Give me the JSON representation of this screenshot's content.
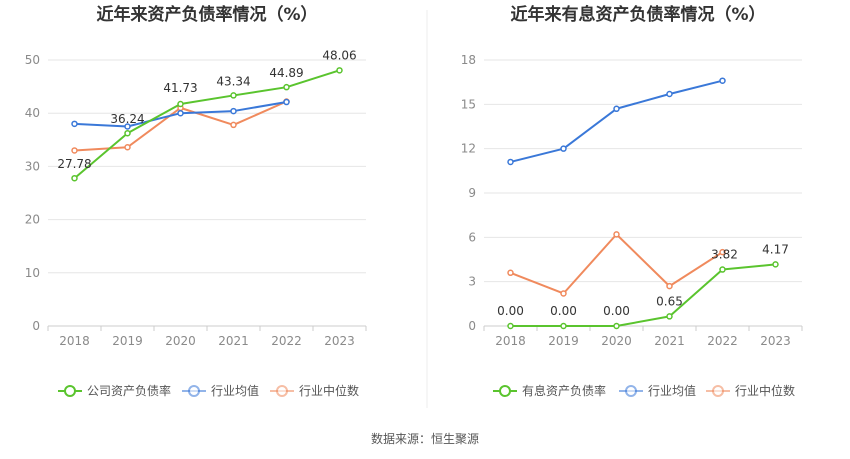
{
  "source": "数据来源：恒生聚源",
  "colors": {
    "company": "#5ac42e",
    "industry_avg": "#3a78d8",
    "industry_median": "#f08a5d",
    "grid": "#e6e6e6",
    "axis": "#cccccc"
  },
  "chart_data": [
    {
      "type": "line",
      "title": "近年来资产负债率情况（%）",
      "categories": [
        "2018",
        "2019",
        "2020",
        "2021",
        "2022",
        "2023"
      ],
      "ylim": [
        0,
        50
      ],
      "yticks": [
        0,
        10,
        20,
        30,
        40,
        50
      ],
      "series": [
        {
          "key": "company",
          "name": "公司资产负债率",
          "values": [
            27.78,
            36.24,
            41.73,
            43.34,
            44.89,
            48.06
          ],
          "labels": [
            "27.78",
            "36.24",
            "41.73",
            "43.34",
            "44.89",
            "48.06"
          ]
        },
        {
          "key": "industry_avg",
          "name": "行业均值",
          "values": [
            38.0,
            37.5,
            40.0,
            40.4,
            42.1,
            null
          ]
        },
        {
          "key": "industry_median",
          "name": "行业中位数",
          "values": [
            33.0,
            33.6,
            41.0,
            37.8,
            42.2,
            null
          ]
        }
      ]
    },
    {
      "type": "line",
      "title": "近年来有息资产负债率情况（%）",
      "categories": [
        "2018",
        "2019",
        "2020",
        "2021",
        "2022",
        "2023"
      ],
      "ylim": [
        0,
        18
      ],
      "yticks": [
        0,
        3,
        6,
        9,
        12,
        15,
        18
      ],
      "series": [
        {
          "key": "company",
          "name": "有息资产负债率",
          "values": [
            0.0,
            0.0,
            0.0,
            0.65,
            3.82,
            4.17
          ],
          "labels": [
            "0.00",
            "0.00",
            "0.00",
            "0.65",
            "3.82",
            "4.17"
          ]
        },
        {
          "key": "industry_avg",
          "name": "行业均值",
          "values": [
            11.1,
            12.0,
            14.7,
            15.7,
            16.6,
            null
          ]
        },
        {
          "key": "industry_median",
          "name": "行业中位数",
          "values": [
            3.6,
            2.2,
            6.2,
            2.7,
            5.0,
            null
          ]
        }
      ]
    }
  ]
}
